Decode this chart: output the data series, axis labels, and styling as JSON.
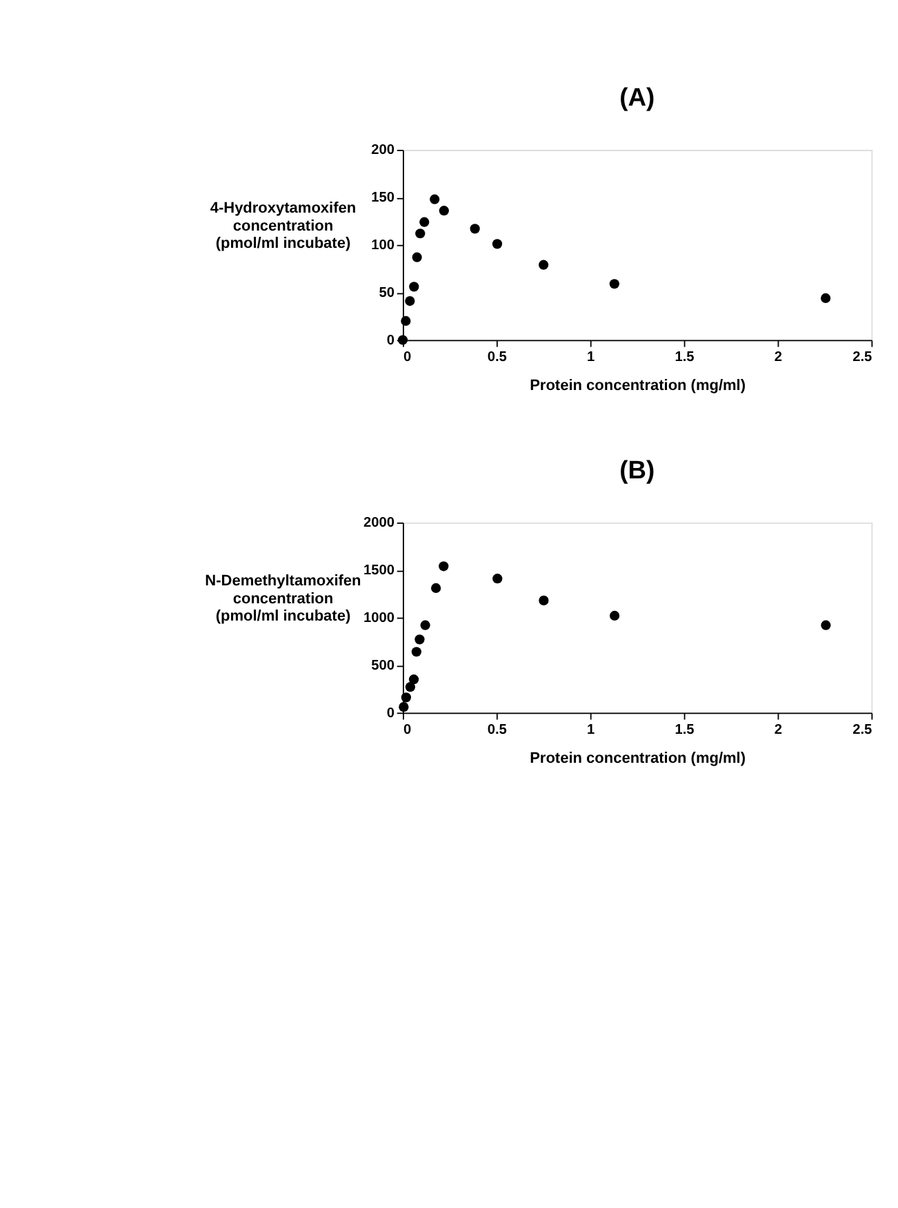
{
  "chart_data": [
    {
      "type": "scatter",
      "title": "(A)",
      "xlabel": "Protein concentration (mg/ml)",
      "ylabel": "4-Hydroxytamoxifen\nconcentration\n(pmol/ml incubate)",
      "x": [
        0,
        0.016,
        0.038,
        0.06,
        0.076,
        0.093,
        0.115,
        0.17,
        0.22,
        0.385,
        0.504,
        0.751,
        1.129,
        2.256
      ],
      "series": [
        {
          "color": "#000000",
          "values": [
            0,
            20,
            41,
            56,
            87,
            112,
            124,
            148,
            136,
            117,
            101,
            79,
            59,
            44
          ]
        }
      ],
      "xlim": [
        0,
        2.5
      ],
      "xticks": [
        0,
        0.5,
        1,
        1.5,
        2,
        2.5
      ],
      "ylim": [
        0,
        200
      ],
      "yticks": [
        0,
        50,
        100,
        150,
        200
      ],
      "grid": false,
      "marker": "circle"
    },
    {
      "type": "scatter",
      "title": "(B)",
      "xlabel": "Protein concentration (mg/ml)",
      "ylabel": "N-Demethyltamoxifen\nconcentration\n(pmol/ml incubate)",
      "x": [
        0.005,
        0.018,
        0.04,
        0.059,
        0.073,
        0.09,
        0.12,
        0.177,
        0.218,
        0.505,
        0.752,
        1.13,
        2.257
      ],
      "series": [
        {
          "color": "#000000",
          "values": [
            60,
            160,
            270,
            350,
            640,
            770,
            920,
            1310,
            1540,
            1410,
            1180,
            1020,
            920
          ]
        }
      ],
      "xlim": [
        0,
        2.5
      ],
      "xticks": [
        0,
        0.5,
        1,
        1.5,
        2,
        2.5
      ],
      "ylim": [
        0,
        2000
      ],
      "yticks": [
        0,
        500,
        1000,
        1500,
        2000
      ],
      "grid": false,
      "marker": "circle"
    }
  ]
}
